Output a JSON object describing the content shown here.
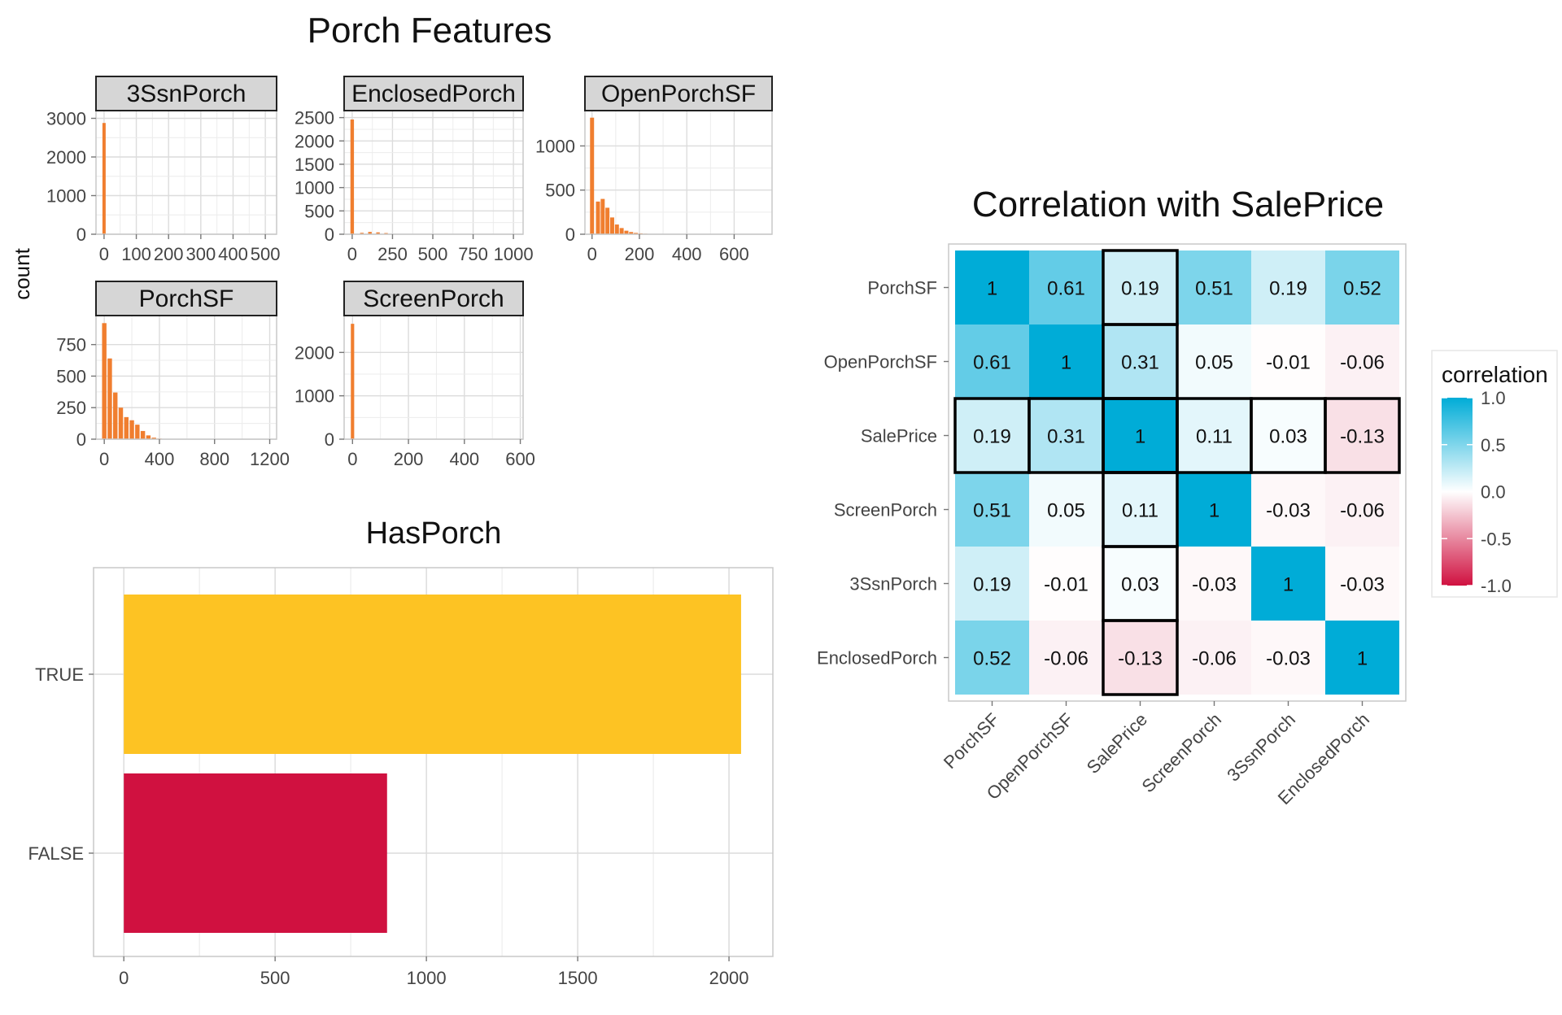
{
  "figure": {
    "title": "Porch Features",
    "y_axis_label": "count"
  },
  "chart_data": [
    {
      "type": "bar",
      "panel": "3SsnPorch",
      "x_ticks": [
        "0",
        "100",
        "200",
        "300",
        "400",
        "500"
      ],
      "x_tick_values": [
        0,
        100,
        200,
        300,
        400,
        500
      ],
      "y_ticks": [
        "0",
        "1000",
        "2000",
        "3000"
      ],
      "y_tick_values": [
        0,
        1000,
        2000,
        3000
      ],
      "xlim": [
        -25,
        535
      ],
      "ylim": [
        0,
        3200
      ],
      "bins": [
        {
          "x": 0,
          "count": 2880
        }
      ],
      "bin_width": 10,
      "bar_color": "#f07e2f",
      "grid": true
    },
    {
      "type": "bar",
      "panel": "EnclosedPorch",
      "x_ticks": [
        "0",
        "250",
        "500",
        "750",
        "1000"
      ],
      "x_tick_values": [
        0,
        250,
        500,
        750,
        1000
      ],
      "y_ticks": [
        "0",
        "500",
        "1000",
        "1500",
        "2000",
        "2500"
      ],
      "y_tick_values": [
        0,
        500,
        1000,
        1500,
        2000,
        2500
      ],
      "xlim": [
        -50,
        1060
      ],
      "ylim": [
        0,
        2650
      ],
      "bins": [
        {
          "x": 0,
          "count": 2460
        },
        {
          "x": 60,
          "count": 30
        },
        {
          "x": 110,
          "count": 50
        },
        {
          "x": 160,
          "count": 40
        },
        {
          "x": 210,
          "count": 25
        },
        {
          "x": 260,
          "count": 8
        }
      ],
      "bin_width": 22,
      "bar_color": "#f07e2f",
      "grid": true
    },
    {
      "type": "bar",
      "panel": "OpenPorchSF",
      "x_ticks": [
        "0",
        "200",
        "400",
        "600"
      ],
      "x_tick_values": [
        0,
        200,
        400,
        600
      ],
      "y_ticks": [
        "0",
        "500",
        "1000"
      ],
      "y_tick_values": [
        0,
        500,
        1000
      ],
      "xlim": [
        -30,
        760
      ],
      "ylim": [
        0,
        1400
      ],
      "bins": [
        {
          "x": 0,
          "count": 1320
        },
        {
          "x": 25,
          "count": 370
        },
        {
          "x": 45,
          "count": 400
        },
        {
          "x": 65,
          "count": 300
        },
        {
          "x": 85,
          "count": 190
        },
        {
          "x": 105,
          "count": 110
        },
        {
          "x": 125,
          "count": 70
        },
        {
          "x": 145,
          "count": 40
        },
        {
          "x": 165,
          "count": 25
        },
        {
          "x": 185,
          "count": 15
        },
        {
          "x": 205,
          "count": 10
        },
        {
          "x": 225,
          "count": 6
        }
      ],
      "bin_width": 17,
      "bar_color": "#f07e2f",
      "grid": true
    },
    {
      "type": "bar",
      "panel": "PorchSF",
      "x_ticks": [
        "0",
        "400",
        "800",
        "1200"
      ],
      "x_tick_values": [
        0,
        400,
        800,
        1200
      ],
      "y_ticks": [
        "0",
        "250",
        "500",
        "750"
      ],
      "y_tick_values": [
        0,
        250,
        500,
        750
      ],
      "xlim": [
        -60,
        1250
      ],
      "ylim": [
        0,
        980
      ],
      "bins": [
        {
          "x": 0,
          "count": 920
        },
        {
          "x": 40,
          "count": 640
        },
        {
          "x": 80,
          "count": 370
        },
        {
          "x": 120,
          "count": 250
        },
        {
          "x": 160,
          "count": 175
        },
        {
          "x": 200,
          "count": 150
        },
        {
          "x": 240,
          "count": 115
        },
        {
          "x": 280,
          "count": 65
        },
        {
          "x": 320,
          "count": 30
        },
        {
          "x": 360,
          "count": 12
        },
        {
          "x": 400,
          "count": 5
        }
      ],
      "bin_width": 32,
      "bar_color": "#f07e2f",
      "grid": true
    },
    {
      "type": "bar",
      "panel": "ScreenPorch",
      "x_ticks": [
        "0",
        "200",
        "400",
        "600"
      ],
      "x_tick_values": [
        0,
        200,
        400,
        600
      ],
      "y_ticks": [
        "0",
        "1000",
        "2000"
      ],
      "y_tick_values": [
        0,
        1000,
        2000
      ],
      "xlim": [
        -30,
        610
      ],
      "ylim": [
        0,
        2850
      ],
      "bins": [
        {
          "x": 0,
          "count": 2660
        }
      ],
      "bin_width": 12,
      "bar_color": "#f07e2f",
      "grid": true
    },
    {
      "type": "bar",
      "title": "HasPorch",
      "orientation": "horizontal",
      "categories": [
        "TRUE",
        "FALSE"
      ],
      "values": [
        2040,
        870
      ],
      "colors": [
        "#fdc323",
        "#d01140"
      ],
      "x_ticks": [
        "0",
        "500",
        "1000",
        "1500",
        "2000"
      ],
      "x_tick_values": [
        0,
        500,
        1000,
        1500,
        2000
      ],
      "xlim": [
        -100,
        2145
      ],
      "grid": true
    },
    {
      "type": "heatmap",
      "title": "Correlation with SalePrice",
      "variables": [
        "PorchSF",
        "OpenPorchSF",
        "SalePrice",
        "ScreenPorch",
        "3SsnPorch",
        "EnclosedPorch"
      ],
      "matrix": [
        [
          1,
          0.61,
          0.19,
          0.51,
          0.19,
          0.52
        ],
        [
          0.61,
          1,
          0.31,
          0.05,
          -0.01,
          -0.06
        ],
        [
          0.19,
          0.31,
          1,
          0.11,
          0.03,
          -0.13
        ],
        [
          0.51,
          0.05,
          0.11,
          1,
          -0.03,
          -0.06
        ],
        [
          0.19,
          -0.01,
          0.03,
          -0.03,
          1,
          -0.03
        ],
        [
          0.52,
          -0.06,
          -0.13,
          -0.06,
          -0.03,
          1
        ]
      ],
      "labels": [
        [
          "1",
          "0.61",
          "0.19",
          "0.51",
          "0.19",
          "0.52"
        ],
        [
          "0.61",
          "1",
          "0.31",
          "0.05",
          "-0.01",
          "-0.06"
        ],
        [
          "0.19",
          "0.31",
          "1",
          "0.11",
          "0.03",
          "-0.13"
        ],
        [
          "0.51",
          "0.05",
          "0.11",
          "1",
          "-0.03",
          "-0.06"
        ],
        [
          "0.19",
          "-0.01",
          "0.03",
          "-0.03",
          "1",
          "-0.03"
        ],
        [
          "0.52",
          "-0.06",
          "-0.13",
          "-0.06",
          "-0.03",
          "1"
        ]
      ],
      "highlight_variable": "SalePrice",
      "color_scale": {
        "low": "#d01140",
        "mid": "#ffffff",
        "high": "#00acd7",
        "limits": [
          -1,
          1
        ]
      },
      "legend": {
        "title": "correlation",
        "ticks": [
          "1.0",
          "0.5",
          "0.0",
          "-0.5",
          "-1.0"
        ],
        "tick_values": [
          1,
          0.5,
          0,
          -0.5,
          -1
        ],
        "position": "right"
      }
    }
  ]
}
